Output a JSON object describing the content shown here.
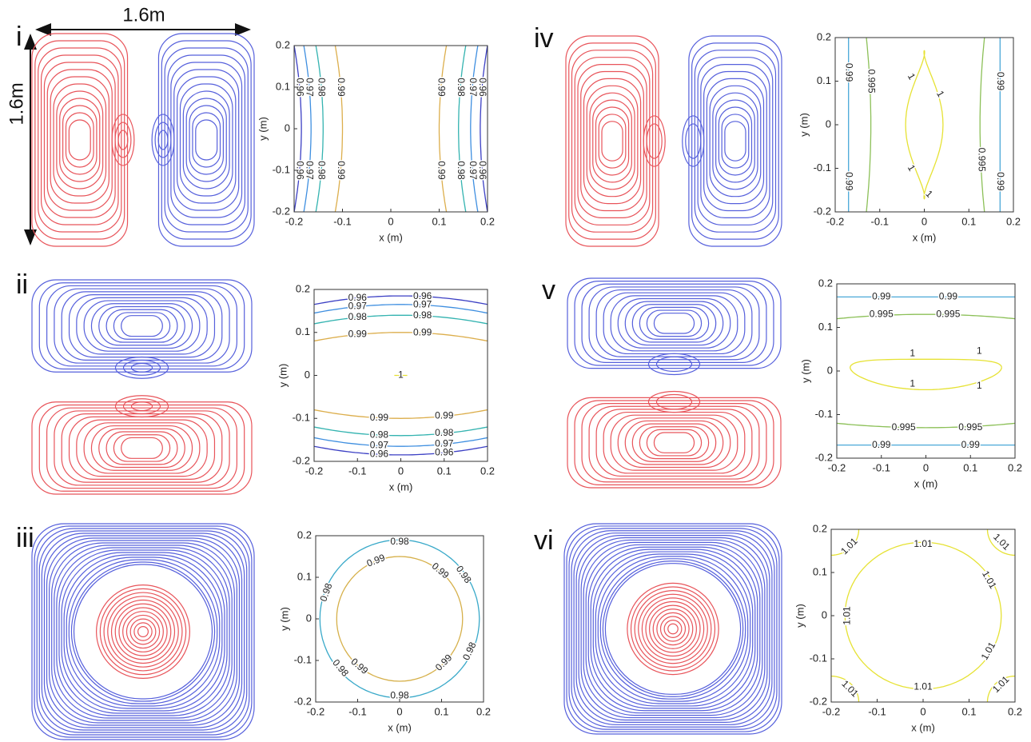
{
  "panel_labels": [
    "i",
    "ii",
    "iii",
    "iv",
    "v",
    "vi"
  ],
  "dimensions": {
    "width": "1.6m",
    "height": "1.6m"
  },
  "chart_data": [
    {
      "type": "contour",
      "xlabel": "x (m)",
      "ylabel": "y (m)",
      "xlim": [
        -0.2,
        0.2
      ],
      "ylim": [
        -0.2,
        0.2
      ],
      "xticks": [
        -0.2,
        -0.1,
        0,
        0.1,
        0.2
      ],
      "yticks": [
        -0.2,
        -0.1,
        0,
        0.1,
        0.2
      ],
      "levels": [
        0.96,
        0.97,
        0.98,
        0.99
      ],
      "colors": [
        "#3b3fc4",
        "#3f8fe0",
        "#33b3b0",
        "#dcae4c"
      ]
    },
    {
      "type": "contour",
      "xlabel": "x (m)",
      "ylabel": "y (m)",
      "xlim": [
        -0.2,
        0.2
      ],
      "ylim": [
        -0.2,
        0.2
      ],
      "xticks": [
        -0.2,
        -0.1,
        0,
        0.1,
        0.2
      ],
      "yticks": [
        -0.2,
        -0.1,
        0,
        0.1,
        0.2
      ],
      "levels": [
        0.96,
        0.97,
        0.98,
        0.99,
        1
      ],
      "colors": [
        "#3b3fc4",
        "#3f8fe0",
        "#33b3b0",
        "#dcae4c",
        "#e6e030"
      ]
    },
    {
      "type": "contour",
      "xlabel": "x (m)",
      "ylabel": "y (m)",
      "xlim": [
        -0.2,
        0.2
      ],
      "ylim": [
        -0.2,
        0.2
      ],
      "xticks": [
        -0.2,
        -0.1,
        0,
        0.1,
        0.2
      ],
      "yticks": [
        -0.2,
        -0.1,
        0,
        0.1,
        0.2
      ],
      "levels": [
        0.98,
        0.99
      ],
      "colors": [
        "#39a9c9",
        "#d6b04a"
      ]
    },
    {
      "type": "contour",
      "xlabel": "x (m)",
      "ylabel": "y (m)",
      "xlim": [
        -0.2,
        0.2
      ],
      "ylim": [
        -0.2,
        0.2
      ],
      "xticks": [
        -0.2,
        -0.1,
        0,
        0.1,
        0.2
      ],
      "yticks": [
        -0.2,
        -0.1,
        0,
        0.1,
        0.2
      ],
      "levels": [
        0.99,
        0.995,
        1
      ],
      "colors": [
        "#4aa8d8",
        "#8cc058",
        "#e6e234"
      ]
    },
    {
      "type": "contour",
      "xlabel": "x (m)",
      "ylabel": "y (m)",
      "xlim": [
        -0.2,
        0.2
      ],
      "ylim": [
        -0.2,
        0.2
      ],
      "xticks": [
        -0.2,
        -0.1,
        0,
        0.1,
        0.2
      ],
      "yticks": [
        -0.2,
        -0.1,
        0,
        0.1,
        0.2
      ],
      "levels": [
        0.99,
        0.995,
        1
      ],
      "colors": [
        "#4aa8d8",
        "#8cc058",
        "#e6e234"
      ]
    },
    {
      "type": "contour",
      "xlabel": "x (m)",
      "ylabel": "y (m)",
      "xlim": [
        -0.2,
        0.2
      ],
      "ylim": [
        -0.2,
        0.2
      ],
      "xticks": [
        -0.2,
        -0.1,
        0,
        0.1,
        0.2
      ],
      "yticks": [
        -0.2,
        -0.1,
        0,
        0.1,
        0.2
      ],
      "levels": [
        1.01
      ],
      "colors": [
        "#e6e234"
      ]
    }
  ]
}
